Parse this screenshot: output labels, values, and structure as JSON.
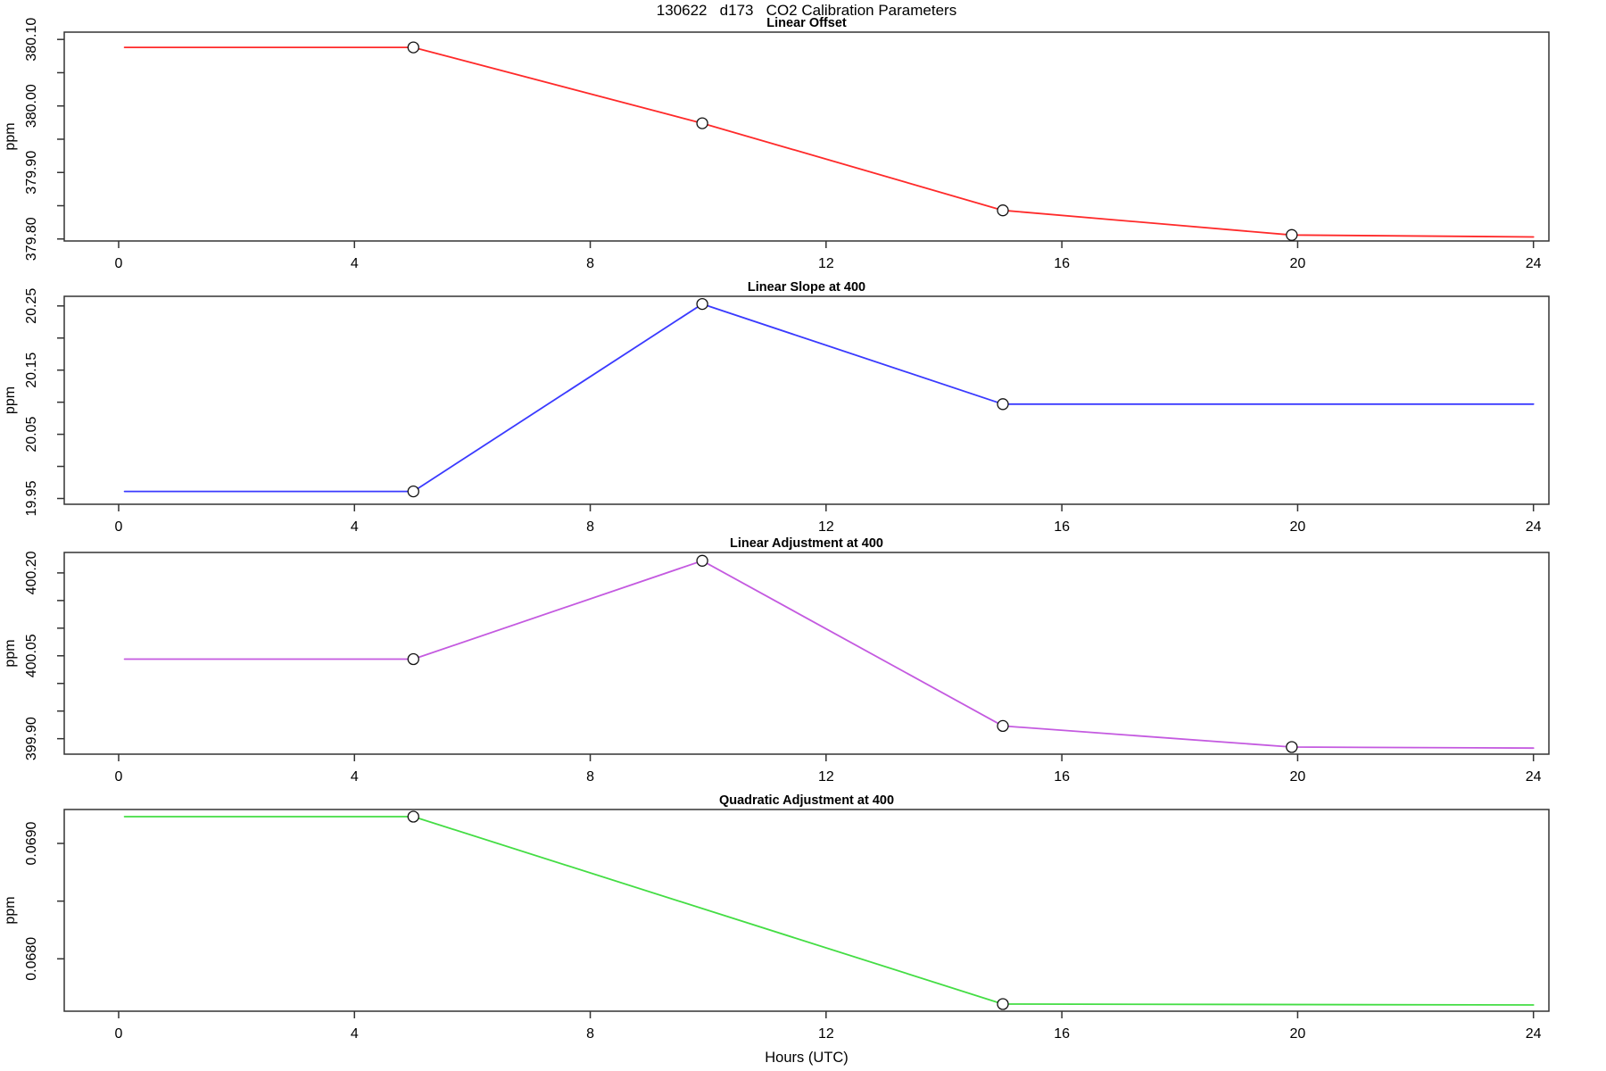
{
  "chart_data": {
    "type": "line",
    "title": "130622   d173   CO2 Calibration Parameters",
    "xlabel": "Hours (UTC)",
    "x_ticks": [
      0,
      4,
      8,
      12,
      16,
      20,
      24
    ],
    "x_tick_labels": [
      "0",
      "4",
      "8",
      "12",
      "16",
      "20",
      "24"
    ],
    "xlim": [
      -0.923,
      24.262
    ],
    "legend_position": "none",
    "grid": false,
    "marker_style": "open-circle",
    "panels": [
      {
        "title": "Linear Offset",
        "ylabel": "ppm",
        "color": "#ff2a2a",
        "ylim": [
          379.797,
          380.111
        ],
        "y_ticks_major": [
          {
            "v": 379.8,
            "label": "379.80"
          },
          {
            "v": 379.9,
            "label": "379.90"
          },
          {
            "v": 380.0,
            "label": "380.00"
          },
          {
            "v": 380.1,
            "label": "380.10"
          }
        ],
        "y_ticks_minor": [
          379.85,
          379.95,
          380.05
        ],
        "line": [
          [
            0.1,
            380.088
          ],
          [
            5.0,
            380.088
          ],
          [
            9.9,
            379.974
          ],
          [
            15.0,
            379.843
          ],
          [
            19.9,
            379.806
          ],
          [
            24.0,
            379.803
          ]
        ],
        "markers": [
          [
            5.0,
            380.088
          ],
          [
            9.9,
            379.974
          ],
          [
            15.0,
            379.843
          ],
          [
            19.9,
            379.806
          ]
        ]
      },
      {
        "title": "Linear Slope at 400",
        "ylabel": "ppm",
        "color": "#3a3aff",
        "ylim": [
          19.941,
          20.265
        ],
        "y_ticks_major": [
          {
            "v": 19.95,
            "label": "19.95"
          },
          {
            "v": 20.05,
            "label": "20.05"
          },
          {
            "v": 20.15,
            "label": "20.15"
          },
          {
            "v": 20.25,
            "label": "20.25"
          }
        ],
        "y_ticks_minor": [
          20.0,
          20.1,
          20.2
        ],
        "line": [
          [
            0.1,
            19.961
          ],
          [
            5.0,
            19.961
          ],
          [
            9.9,
            20.253
          ],
          [
            15.0,
            20.097
          ],
          [
            24.0,
            20.097
          ]
        ],
        "markers": [
          [
            5.0,
            19.961
          ],
          [
            9.9,
            20.253
          ],
          [
            15.0,
            20.097
          ]
        ]
      },
      {
        "title": "Linear Adjustment at 400",
        "ylabel": "ppm",
        "color": "#c45ae0",
        "ylim": [
          399.872,
          400.237
        ],
        "y_ticks_major": [
          {
            "v": 399.9,
            "label": "399.90"
          },
          {
            "v": 400.05,
            "label": "400.05"
          },
          {
            "v": 400.2,
            "label": "400.20"
          }
        ],
        "y_ticks_minor": [
          399.95,
          400.0,
          400.1,
          400.15
        ],
        "line": [
          [
            0.1,
            400.044
          ],
          [
            5.0,
            400.044
          ],
          [
            9.9,
            400.222
          ],
          [
            15.0,
            399.923
          ],
          [
            19.9,
            399.885
          ],
          [
            24.0,
            399.883
          ]
        ],
        "markers": [
          [
            5.0,
            400.044
          ],
          [
            9.9,
            400.222
          ],
          [
            15.0,
            399.923
          ],
          [
            19.9,
            399.885
          ]
        ]
      },
      {
        "title": "Quadratic Adjustment at 400",
        "ylabel": "ppm",
        "color": "#44dd44",
        "ylim": [
          0.067546,
          0.069294
        ],
        "y_ticks_major": [
          {
            "v": 0.068,
            "label": "0.0680"
          },
          {
            "v": 0.069,
            "label": "0.0690"
          }
        ],
        "y_ticks_minor": [
          0.0685
        ],
        "line": [
          [
            0.1,
            0.069232
          ],
          [
            5.0,
            0.069232
          ],
          [
            15.0,
            0.067608
          ],
          [
            24.0,
            0.0676
          ]
        ],
        "markers": [
          [
            5.0,
            0.069232
          ],
          [
            15.0,
            0.067608
          ]
        ]
      }
    ]
  }
}
